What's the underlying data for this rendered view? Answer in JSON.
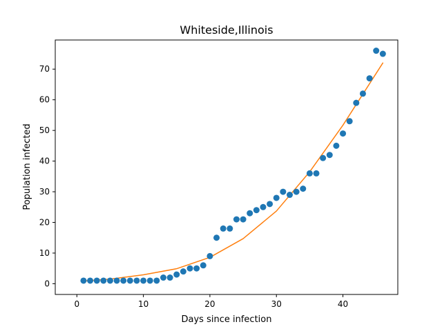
{
  "chart_data": {
    "type": "scatter",
    "title": "Whiteside,Illinois",
    "xlabel": "Days since infection",
    "ylabel": "Population infected",
    "xlim": [
      -3.25,
      48.25
    ],
    "ylim": [
      -3.5,
      79.5
    ],
    "xticks": [
      0,
      10,
      20,
      30,
      40
    ],
    "yticks": [
      0,
      10,
      20,
      30,
      40,
      50,
      60,
      70
    ],
    "grid": false,
    "colors": {
      "points": "#1f77b4",
      "fit": "#ff7f0e"
    },
    "series": [
      {
        "kind": "scatter",
        "x": [
          1,
          2,
          3,
          4,
          5,
          6,
          7,
          8,
          9,
          10,
          11,
          12,
          13,
          14,
          15,
          16,
          17,
          18,
          19,
          20,
          21,
          22,
          23,
          24,
          25,
          26,
          27,
          28,
          29,
          30,
          31,
          32,
          33,
          34,
          35,
          36,
          37,
          38,
          39,
          40,
          41,
          42,
          43,
          44,
          45,
          46
        ],
        "y": [
          1,
          1,
          1,
          1,
          1,
          1,
          1,
          1,
          1,
          1,
          1,
          1,
          2,
          2,
          3,
          4,
          5,
          5,
          6,
          9,
          15,
          18,
          18,
          21,
          21,
          23,
          24,
          25,
          26,
          28,
          30,
          29,
          30,
          31,
          36,
          36,
          41,
          42,
          45,
          49,
          53,
          59,
          62,
          67,
          76,
          75
        ]
      },
      {
        "kind": "line",
        "x": [
          1,
          5,
          10,
          15,
          20,
          25,
          30,
          35,
          40,
          46
        ],
        "y": [
          0.9,
          1.5,
          2.9,
          4.9,
          8.6,
          14.7,
          23.7,
          36.5,
          51.7,
          72.0
        ]
      }
    ]
  }
}
